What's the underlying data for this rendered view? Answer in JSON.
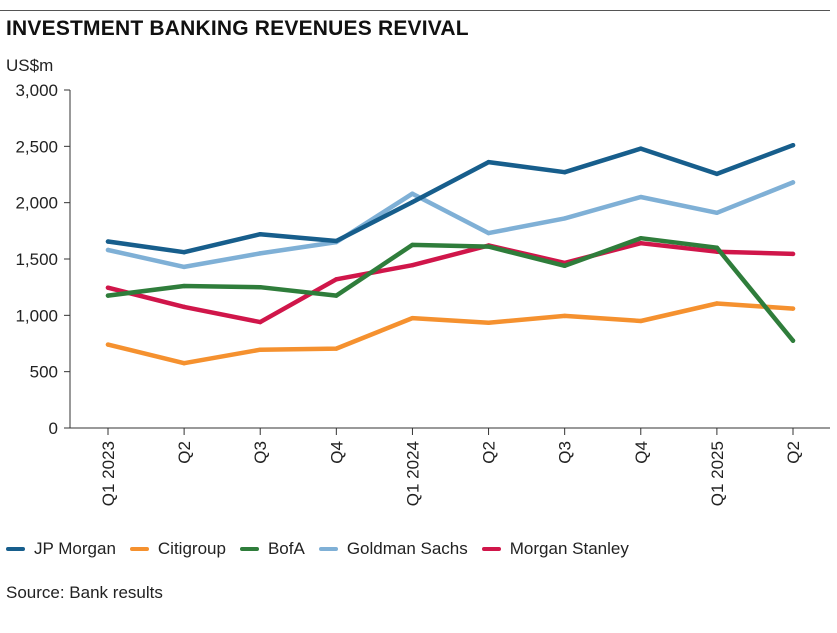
{
  "chart_data": {
    "type": "line",
    "title": "INVESTMENT BANKING REVENUES REVIVAL",
    "ylabel": "US$m",
    "xlabel": "",
    "ylim": [
      0,
      3000
    ],
    "yticks": [
      "0",
      "500",
      "1,000",
      "1,500",
      "2,000",
      "2,500",
      "3,000"
    ],
    "ytick_values": [
      0,
      500,
      1000,
      1500,
      2000,
      2500,
      3000
    ],
    "categories": [
      "Q1 2023",
      "Q2",
      "Q3",
      "Q4",
      "Q1 2024",
      "Q2",
      "Q3",
      "Q4",
      "Q1 2025",
      "Q2"
    ],
    "grid": false,
    "legend_position": "bottom",
    "series": [
      {
        "name": "Goldman Sachs",
        "color": "#7fb0d6",
        "values": [
          1580,
          1430,
          1550,
          1650,
          2080,
          1730,
          1860,
          2050,
          1910,
          2180
        ]
      },
      {
        "name": "Citigroup",
        "color": "#f5912f",
        "values": [
          740,
          575,
          695,
          705,
          975,
          935,
          995,
          950,
          1105,
          1060
        ]
      },
      {
        "name": "Morgan Stanley",
        "color": "#d0164a",
        "values": [
          1245,
          1075,
          940,
          1320,
          1445,
          1620,
          1465,
          1640,
          1565,
          1545
        ]
      },
      {
        "name": "BofA",
        "color": "#2f7d3b",
        "values": [
          1175,
          1260,
          1250,
          1175,
          1625,
          1610,
          1440,
          1685,
          1600,
          775
        ]
      },
      {
        "name": "JP Morgan",
        "color": "#175e8c",
        "values": [
          1655,
          1560,
          1720,
          1660,
          2005,
          2360,
          2270,
          2480,
          2255,
          2510
        ]
      }
    ]
  },
  "legend": {
    "items": [
      {
        "label": "JP Morgan",
        "color": "#175e8c"
      },
      {
        "label": "Citigroup",
        "color": "#f5912f"
      },
      {
        "label": "BofA",
        "color": "#2f7d3b"
      },
      {
        "label": "Goldman Sachs",
        "color": "#7fb0d6"
      },
      {
        "label": "Morgan Stanley",
        "color": "#d0164a"
      }
    ]
  },
  "source": "Source: Bank results"
}
